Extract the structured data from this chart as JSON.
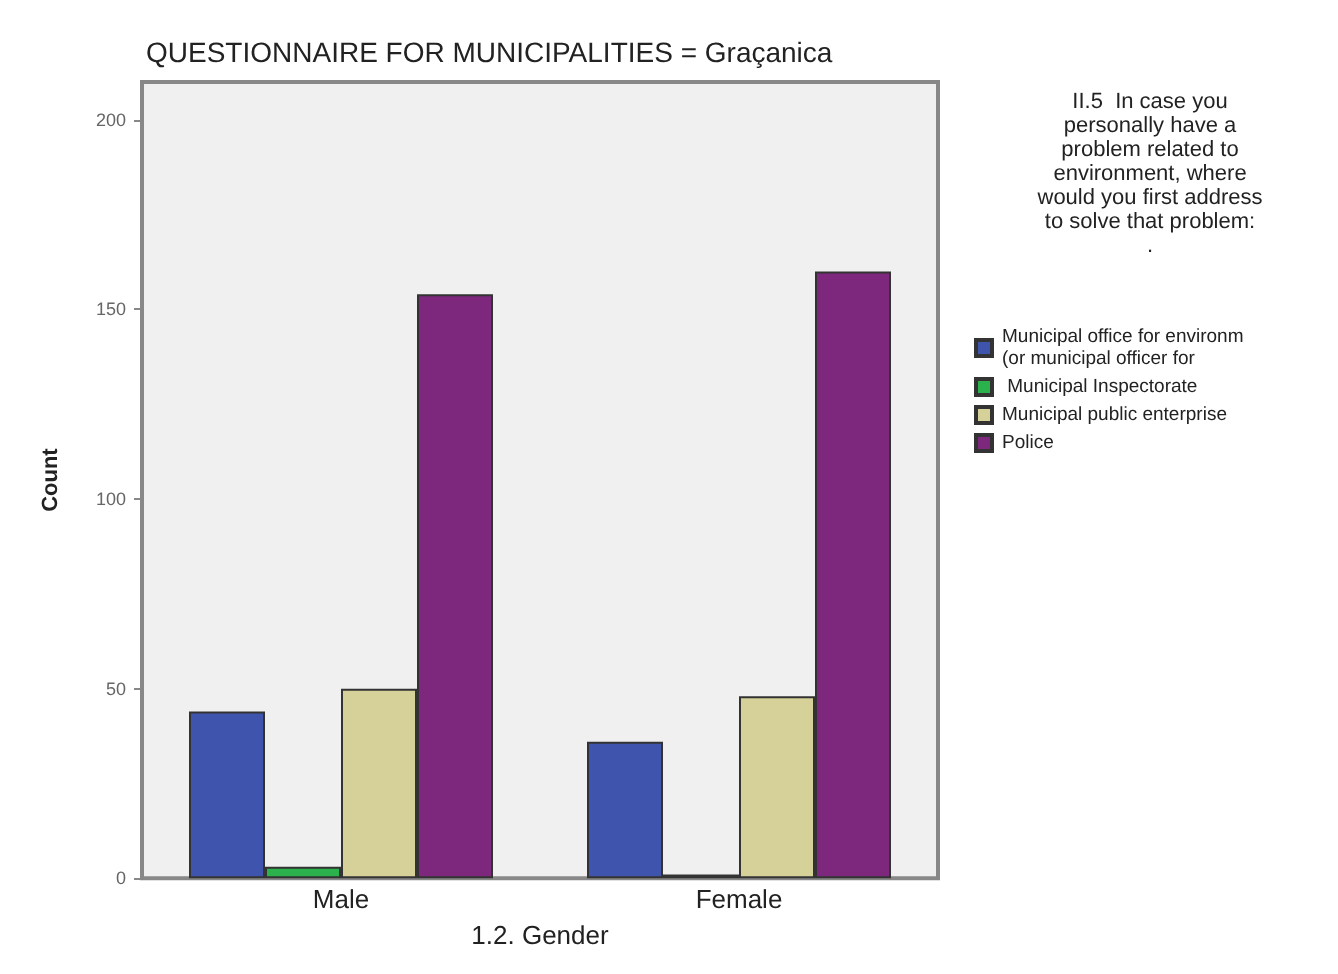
{
  "chart_data": {
    "type": "bar",
    "title": "QUESTIONNAIRE FOR MUNICIPALITIES = Graçanica",
    "xlabel": "1.2. Gender",
    "ylabel": "Count",
    "legend_title": "II.5  In case you\npersonally have a\nproblem related to\nenvironment, where\nwould you first address\nto solve that problem:\n.",
    "categories": [
      "Male",
      "Female"
    ],
    "series": [
      {
        "name": "Municipal office for environm\n(or municipal officer for",
        "color": "#3f55ad",
        "values": [
          44,
          36
        ]
      },
      {
        "name": " Municipal Inspectorate",
        "color": "#2bb24c",
        "values": [
          3,
          1
        ]
      },
      {
        "name": "Municipal public enterprise",
        "color": "#d6d198",
        "values": [
          50,
          48
        ]
      },
      {
        "name": "Police",
        "color": "#7d287c",
        "values": [
          154,
          160
        ]
      }
    ],
    "ylim": [
      0,
      210
    ],
    "yticks": [
      0,
      50,
      100,
      150,
      200
    ],
    "grid": false,
    "legend": "right"
  }
}
